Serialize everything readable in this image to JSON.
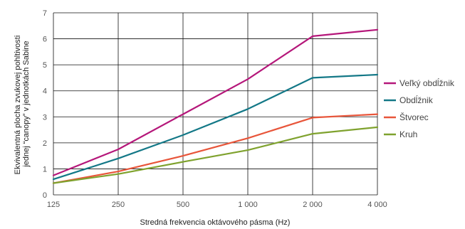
{
  "chart_data": {
    "type": "line",
    "title": "",
    "xlabel": "Stredná frekvencia oktávového pásma (Hz)",
    "ylabel_lines": [
      "Ekvivalentná plocha zvukovej pohltivosti",
      "jednej “canopy” v jednotkách Sabine"
    ],
    "categories": [
      "125",
      "250",
      "500",
      "1 000",
      "2 000",
      "4 000"
    ],
    "y_ticks": [
      "0",
      "1",
      "2",
      "3",
      "4",
      "5",
      "6",
      "7"
    ],
    "ylim": [
      0,
      7
    ],
    "grid": true,
    "legend_position": "right",
    "series": [
      {
        "name": "Veľký obdĺžnik",
        "color": "#b5177a",
        "values": [
          0.75,
          1.75,
          3.1,
          4.45,
          6.1,
          6.35
        ]
      },
      {
        "name": "Obdĺžnik",
        "color": "#137887",
        "values": [
          0.6,
          1.4,
          2.3,
          3.3,
          4.5,
          4.62
        ]
      },
      {
        "name": "Štvorec",
        "color": "#e8553a",
        "values": [
          0.45,
          0.9,
          1.5,
          2.18,
          2.97,
          3.1
        ]
      },
      {
        "name": "Kruh",
        "color": "#7fa22e",
        "values": [
          0.45,
          0.8,
          1.27,
          1.72,
          2.35,
          2.6
        ]
      }
    ]
  }
}
